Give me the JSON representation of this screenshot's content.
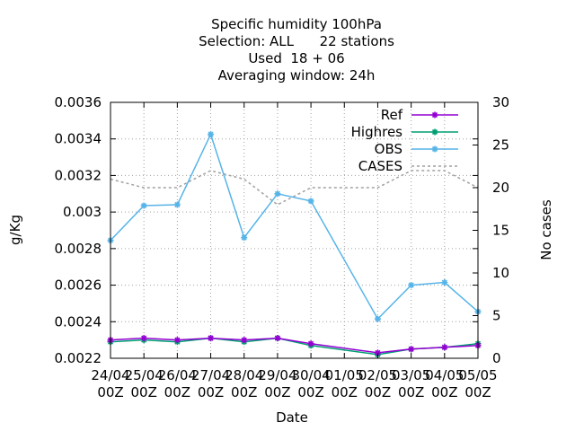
{
  "chart_data": {
    "type": "line",
    "title_lines": [
      "Specific humidity 100hPa",
      "Selection: ALL      22 stations",
      "Used  18 + 06",
      "Averaging window: 24h"
    ],
    "xlabel": "Date",
    "ylabel": "g/Kg",
    "y2label": "No cases",
    "x_ticks": [
      [
        "24/04",
        "00Z"
      ],
      [
        "25/04",
        "00Z"
      ],
      [
        "26/04",
        "00Z"
      ],
      [
        "27/04",
        "00Z"
      ],
      [
        "28/04",
        "00Z"
      ],
      [
        "29/04",
        "00Z"
      ],
      [
        "30/04",
        "00Z"
      ],
      [
        "01/05",
        "00Z"
      ],
      [
        "02/05",
        "00Z"
      ],
      [
        "03/05",
        "00Z"
      ],
      [
        "04/05",
        "00Z"
      ],
      [
        "05/05",
        "00Z"
      ]
    ],
    "ylim": [
      0.0022,
      0.0036
    ],
    "y_ticks": [
      "0.0022",
      "0.0024",
      "0.0026",
      "0.0028",
      "0.003",
      "0.0032",
      "0.0034",
      "0.0036"
    ],
    "y2lim": [
      0,
      30
    ],
    "y2_ticks": [
      "0",
      "5",
      "10",
      "15",
      "20",
      "25",
      "30"
    ],
    "grid": true,
    "legend_position": "top-right",
    "series": [
      {
        "name": "Ref",
        "color": "#9400d3",
        "marker": "plus-star",
        "axis": "y1",
        "points": [
          [
            0,
            0.0023
          ],
          [
            1,
            0.00231
          ],
          [
            2,
            0.0023
          ],
          [
            3,
            0.00231
          ],
          [
            4,
            0.0023
          ],
          [
            5,
            0.00231
          ],
          [
            6,
            0.00228
          ],
          [
            8,
            0.00223
          ],
          [
            9,
            0.00225
          ],
          [
            10,
            0.00226
          ],
          [
            11,
            0.00227
          ]
        ]
      },
      {
        "name": "Highres",
        "color": "#009e73",
        "marker": "plus-star",
        "axis": "y1",
        "points": [
          [
            0,
            0.00229
          ],
          [
            1,
            0.0023
          ],
          [
            2,
            0.00229
          ],
          [
            3,
            0.00231
          ],
          [
            4,
            0.00229
          ],
          [
            5,
            0.00231
          ],
          [
            6,
            0.00227
          ],
          [
            8,
            0.00222
          ],
          [
            9,
            0.00225
          ],
          [
            10,
            0.00226
          ],
          [
            11,
            0.00228
          ]
        ]
      },
      {
        "name": "OBS",
        "color": "#56b4e9",
        "marker": "plus-star",
        "axis": "y1",
        "points": [
          [
            0,
            0.002845
          ],
          [
            1,
            0.003035
          ],
          [
            2,
            0.00304
          ],
          [
            3,
            0.003425
          ],
          [
            4,
            0.00286
          ],
          [
            5,
            0.0031
          ],
          [
            6,
            0.00306
          ],
          [
            8,
            0.002415
          ],
          [
            9,
            0.0026
          ],
          [
            10,
            0.002615
          ],
          [
            11,
            0.002455
          ]
        ]
      },
      {
        "name": "CASES",
        "color": "#a0a0a0",
        "dashed": true,
        "axis": "y2",
        "points": [
          [
            0,
            21
          ],
          [
            1,
            20
          ],
          [
            2,
            20
          ],
          [
            3,
            22
          ],
          [
            4,
            21
          ],
          [
            5,
            18
          ],
          [
            6,
            20
          ],
          [
            7,
            20
          ],
          [
            8,
            20
          ],
          [
            9,
            22
          ],
          [
            10,
            22
          ],
          [
            11,
            20
          ]
        ]
      }
    ]
  }
}
